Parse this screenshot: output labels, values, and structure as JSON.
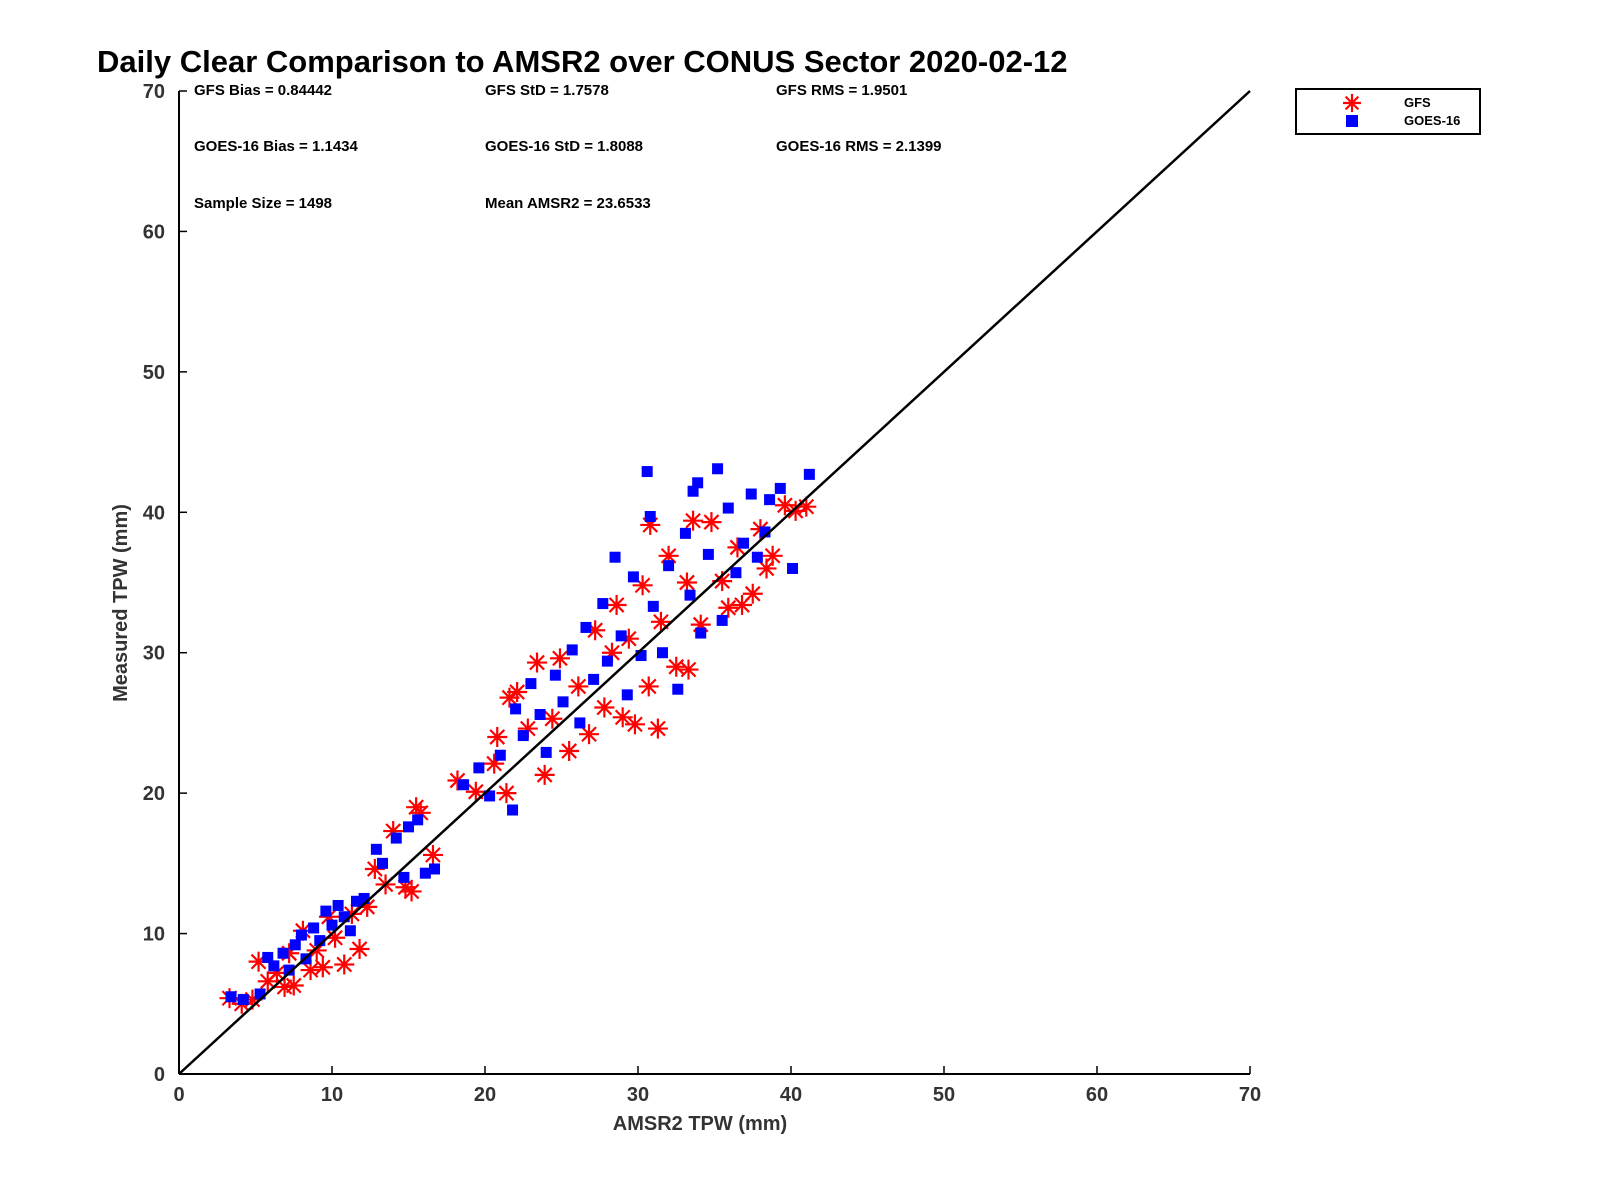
{
  "chart_data": {
    "type": "scatter",
    "title": "Daily Clear Comparison to AMSR2 over CONUS Sector 2020-02-12",
    "xlabel": "AMSR2 TPW (mm)",
    "ylabel": "Measured TPW (mm)",
    "xlim": [
      0,
      70
    ],
    "ylim": [
      0,
      70
    ],
    "xticks": [
      "0",
      "10",
      "20",
      "30",
      "40",
      "50",
      "60",
      "70"
    ],
    "yticks": [
      "0",
      "10",
      "20",
      "30",
      "40",
      "50",
      "60",
      "70"
    ],
    "grid": false,
    "legend_position": "outside-top-right",
    "reference_line": {
      "x": [
        0,
        70
      ],
      "y": [
        0,
        70
      ],
      "color": "#000000"
    },
    "stats": {
      "gfs_bias": "GFS Bias = 0.84442",
      "gfs_std": "GFS StD = 1.7578",
      "gfs_rms": "GFS RMS = 1.9501",
      "goes_bias": "GOES-16 Bias = 1.1434",
      "goes_std": "GOES-16 StD = 1.8088",
      "goes_rms": "GOES-16 RMS = 2.1399",
      "sample_size": "Sample Size = 1498",
      "mean_amsr2": "Mean AMSR2 = 23.6533"
    },
    "series": [
      {
        "name": "GFS",
        "marker": "asterisk",
        "color": "#ff0000",
        "points": [
          [
            3.3,
            5.4
          ],
          [
            4.1,
            5.0
          ],
          [
            4.8,
            5.3
          ],
          [
            5.2,
            8.0
          ],
          [
            5.8,
            6.6
          ],
          [
            6.4,
            7.2
          ],
          [
            6.9,
            6.2
          ],
          [
            7.2,
            8.6
          ],
          [
            7.5,
            6.3
          ],
          [
            8.1,
            10.2
          ],
          [
            8.6,
            7.4
          ],
          [
            9.0,
            8.8
          ],
          [
            9.4,
            7.6
          ],
          [
            9.8,
            11.2
          ],
          [
            10.2,
            9.7
          ],
          [
            10.8,
            7.8
          ],
          [
            11.3,
            11.4
          ],
          [
            11.8,
            8.9
          ],
          [
            12.3,
            11.9
          ],
          [
            12.8,
            14.6
          ],
          [
            13.5,
            13.5
          ],
          [
            14.0,
            17.3
          ],
          [
            14.8,
            13.3
          ],
          [
            15.2,
            13.0
          ],
          [
            15.5,
            19.0
          ],
          [
            15.8,
            18.6
          ],
          [
            16.6,
            15.6
          ],
          [
            18.2,
            20.9
          ],
          [
            19.4,
            20.1
          ],
          [
            20.6,
            22.1
          ],
          [
            20.8,
            24.0
          ],
          [
            21.4,
            20.0
          ],
          [
            21.6,
            26.8
          ],
          [
            22.1,
            27.2
          ],
          [
            22.8,
            24.6
          ],
          [
            23.4,
            29.3
          ],
          [
            23.9,
            21.3
          ],
          [
            24.4,
            25.3
          ],
          [
            24.9,
            29.6
          ],
          [
            25.5,
            23.0
          ],
          [
            26.1,
            27.6
          ],
          [
            26.8,
            24.2
          ],
          [
            27.2,
            31.6
          ],
          [
            27.8,
            26.1
          ],
          [
            28.3,
            30.0
          ],
          [
            28.6,
            33.4
          ],
          [
            29.0,
            25.4
          ],
          [
            29.4,
            31.0
          ],
          [
            29.8,
            24.9
          ],
          [
            30.3,
            34.8
          ],
          [
            30.8,
            39.1
          ],
          [
            30.7,
            27.6
          ],
          [
            31.3,
            24.6
          ],
          [
            31.5,
            32.2
          ],
          [
            32.0,
            36.9
          ],
          [
            32.5,
            29.0
          ],
          [
            33.2,
            35.0
          ],
          [
            33.3,
            28.8
          ],
          [
            33.6,
            39.4
          ],
          [
            34.1,
            32.0
          ],
          [
            34.8,
            39.3
          ],
          [
            35.5,
            35.1
          ],
          [
            35.9,
            33.2
          ],
          [
            36.5,
            37.5
          ],
          [
            36.8,
            33.4
          ],
          [
            37.5,
            34.2
          ],
          [
            38.0,
            38.8
          ],
          [
            38.4,
            36.0
          ],
          [
            38.8,
            36.9
          ],
          [
            39.6,
            40.5
          ],
          [
            40.3,
            40.1
          ],
          [
            41.0,
            40.4
          ]
        ]
      },
      {
        "name": "GOES-16",
        "marker": "square",
        "color": "#0000ff",
        "points": [
          [
            3.4,
            5.5
          ],
          [
            4.2,
            5.3
          ],
          [
            5.3,
            5.7
          ],
          [
            5.8,
            8.3
          ],
          [
            6.2,
            7.7
          ],
          [
            6.8,
            8.6
          ],
          [
            7.2,
            7.4
          ],
          [
            7.6,
            9.2
          ],
          [
            8.0,
            9.9
          ],
          [
            8.3,
            8.2
          ],
          [
            8.8,
            10.4
          ],
          [
            9.2,
            9.5
          ],
          [
            9.6,
            11.6
          ],
          [
            10.0,
            10.6
          ],
          [
            10.4,
            12.0
          ],
          [
            10.8,
            11.2
          ],
          [
            11.2,
            10.2
          ],
          [
            11.6,
            12.3
          ],
          [
            12.1,
            12.5
          ],
          [
            12.9,
            16.0
          ],
          [
            13.3,
            15.0
          ],
          [
            14.2,
            16.8
          ],
          [
            14.7,
            14.0
          ],
          [
            15.0,
            17.6
          ],
          [
            15.6,
            18.1
          ],
          [
            16.1,
            14.3
          ],
          [
            16.7,
            14.6
          ],
          [
            18.6,
            20.6
          ],
          [
            19.6,
            21.8
          ],
          [
            20.3,
            19.8
          ],
          [
            21.0,
            22.7
          ],
          [
            21.8,
            18.8
          ],
          [
            22.0,
            26.0
          ],
          [
            22.5,
            24.1
          ],
          [
            23.0,
            27.8
          ],
          [
            23.6,
            25.6
          ],
          [
            24.0,
            22.9
          ],
          [
            24.6,
            28.4
          ],
          [
            25.1,
            26.5
          ],
          [
            25.7,
            30.2
          ],
          [
            26.2,
            25.0
          ],
          [
            26.6,
            31.8
          ],
          [
            27.1,
            28.1
          ],
          [
            27.7,
            33.5
          ],
          [
            28.0,
            29.4
          ],
          [
            28.5,
            36.8
          ],
          [
            28.9,
            31.2
          ],
          [
            29.3,
            27.0
          ],
          [
            29.7,
            35.4
          ],
          [
            30.2,
            29.8
          ],
          [
            30.6,
            42.9
          ],
          [
            30.8,
            39.7
          ],
          [
            31.0,
            33.3
          ],
          [
            31.6,
            30.0
          ],
          [
            32.0,
            36.2
          ],
          [
            32.6,
            27.4
          ],
          [
            33.1,
            38.5
          ],
          [
            33.4,
            34.1
          ],
          [
            33.6,
            41.5
          ],
          [
            33.9,
            42.1
          ],
          [
            34.1,
            31.4
          ],
          [
            34.6,
            37.0
          ],
          [
            35.2,
            43.1
          ],
          [
            35.5,
            32.3
          ],
          [
            35.9,
            40.3
          ],
          [
            36.4,
            35.7
          ],
          [
            36.9,
            37.8
          ],
          [
            37.4,
            41.3
          ],
          [
            37.8,
            36.8
          ],
          [
            38.3,
            38.6
          ],
          [
            38.6,
            40.9
          ],
          [
            39.3,
            41.7
          ],
          [
            40.1,
            36.0
          ],
          [
            41.2,
            42.7
          ]
        ]
      }
    ]
  }
}
